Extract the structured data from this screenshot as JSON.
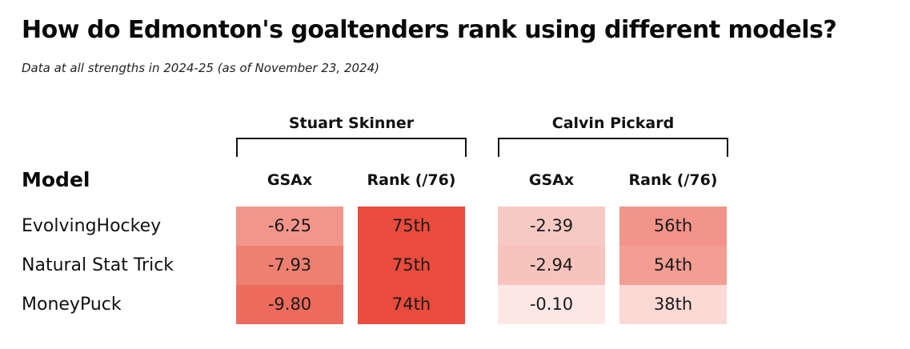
{
  "title": "How do Edmonton's goaltenders rank using different models?",
  "subtitle": "Data at all strengths in 2024-25 (as of November 23, 2024)",
  "model_header": "Model",
  "chart_data": {
    "type": "table",
    "row_header": "Model",
    "rows": [
      "EvolvingHockey",
      "Natural Stat Trick",
      "MoneyPuck"
    ],
    "groups": [
      {
        "name": "Stuart Skinner",
        "columns": [
          "GSAx",
          "Rank (/76)"
        ],
        "gsax": [
          "-6.25",
          "-7.93",
          "-9.80"
        ],
        "rank": [
          "75th",
          "75th",
          "74th"
        ],
        "gsax_colors": [
          "#f2968b",
          "#ee8072",
          "#ec6b5d"
        ],
        "rank_colors": [
          "#e94b3c",
          "#e94b3c",
          "#e94b3c"
        ]
      },
      {
        "name": "Calvin Pickard",
        "columns": [
          "GSAx",
          "Rank (/76)"
        ],
        "gsax": [
          "-2.39",
          "-2.94",
          "-0.10"
        ],
        "rank": [
          "56th",
          "54th",
          "38th"
        ],
        "gsax_colors": [
          "#f7c9c3",
          "#f7c3bd",
          "#fde7e5"
        ],
        "rank_colors": [
          "#f29489",
          "#f39d93",
          "#fbd9d5"
        ]
      }
    ]
  }
}
